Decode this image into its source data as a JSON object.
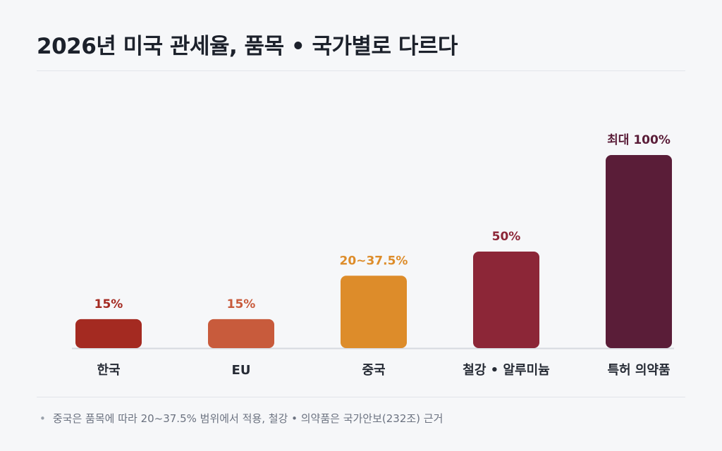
{
  "title": "2026년 미국 관세율, 품목 • 국가별로 다르다",
  "footnote": "중국은 품목에 따라 20~37.5% 범위에서 적용, 철강 • 의약품은 국가안보(232조) 근거",
  "chart_data": {
    "type": "bar",
    "categories": [
      "한국",
      "EU",
      "중국",
      "철강 • 알루미늄",
      "특허 의약품"
    ],
    "values": [
      15,
      15,
      37.5,
      50,
      100
    ],
    "value_labels": [
      "15%",
      "15%",
      "20~37.5%",
      "50%",
      "최대 100%"
    ],
    "colors": [
      "#a42a21",
      "#c85b3c",
      "#dd8c2a",
      "#8c2637",
      "#5a1d38"
    ],
    "label_colors": [
      "#a42a21",
      "#c85b3c",
      "#dd8c2a",
      "#8c2637",
      "#5a1d38"
    ],
    "ylim": [
      0,
      100
    ],
    "xlabel": "",
    "ylabel": "",
    "grid": false
  }
}
